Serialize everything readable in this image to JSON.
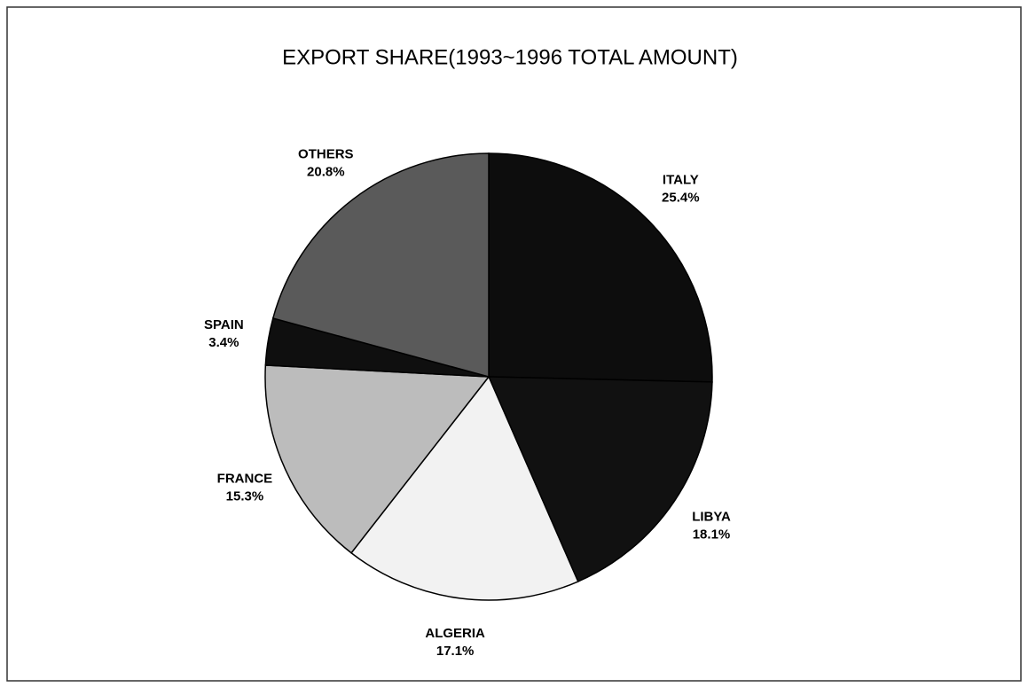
{
  "chart_data": {
    "type": "pie",
    "title": "EXPORT SHARE(1993~1996 TOTAL AMOUNT)",
    "categories": [
      "ITALY",
      "LIBYA",
      "ALGERIA",
      "FRANCE",
      "SPAIN",
      "OTHERS"
    ],
    "values": [
      25.4,
      18.1,
      17.1,
      15.3,
      3.4,
      20.8
    ],
    "value_labels": [
      "25.4%",
      "18.1%",
      "17.1%",
      "15.3%",
      "3.4%",
      "20.8%"
    ],
    "colors": [
      "#0d0d0d",
      "#111111",
      "#f2f2f2",
      "#bcbcbc",
      "#0f0f0f",
      "#5a5a5a"
    ]
  }
}
